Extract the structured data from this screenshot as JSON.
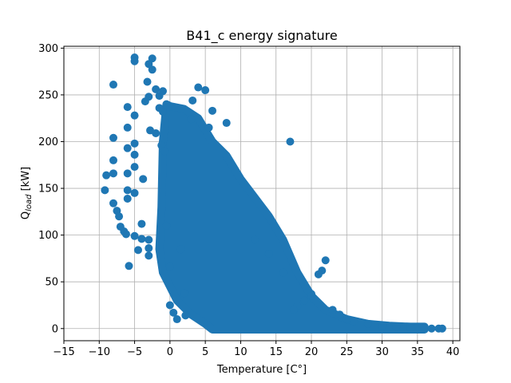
{
  "chart_data": {
    "type": "scatter",
    "title": "B41_c energy signature",
    "xlabel": "Temperature [C°]",
    "ylabel": "Q_load [kW]",
    "ylabel_main": "Q",
    "ylabel_sub": "load",
    "ylabel_unit": " [kW]",
    "xlim": [
      -15,
      41
    ],
    "ylim": [
      -13,
      302
    ],
    "xticks": [
      -15,
      -10,
      -5,
      0,
      5,
      10,
      15,
      20,
      25,
      30,
      35,
      40
    ],
    "xtick_labels": [
      "−15",
      "−10",
      "−5",
      "0",
      "5",
      "10",
      "15",
      "20",
      "25",
      "30",
      "35",
      "40"
    ],
    "yticks": [
      0,
      50,
      100,
      150,
      200,
      250,
      300
    ],
    "ytick_labels": [
      "0",
      "50",
      "100",
      "150",
      "200",
      "250",
      "300"
    ],
    "grid": true,
    "marker_color": "#1f77b4",
    "series": [
      {
        "x": [
          -9.2,
          -9.0,
          -8.0,
          -8.0,
          -8.0,
          -8.0,
          -8.0,
          -7.5,
          -7.2,
          -7.0,
          -6.5,
          -6.2,
          -6.0,
          -6.0,
          -6.0,
          -6.0,
          -6.0,
          -6.0,
          -5.8,
          -5.0,
          -5.0,
          -5.0,
          -5.0,
          -5.0,
          -5.0,
          -5.0,
          -5.0,
          -4.5,
          -4.0,
          -4.0,
          -3.8,
          -3.5,
          -3.2,
          -3.0,
          -3.0,
          -3.0,
          -3.0,
          -3.0,
          -2.8,
          -2.5,
          -2.5,
          -2.0,
          -2.0,
          -1.5,
          -1.5,
          -1.2,
          -1.0,
          -1.0,
          -0.8,
          -0.5,
          0.0,
          0.0,
          0.5,
          1.0,
          1.5,
          2.0,
          2.2,
          3.0,
          3.2,
          4.0,
          5.0,
          5.5,
          6.0,
          8.0,
          17.0,
          22.0,
          21.5,
          21.0,
          20.0,
          19.0,
          18.0,
          17.5,
          24.0,
          26.0,
          28.0,
          30.0,
          32.0,
          34.0,
          36.0,
          37.0,
          38.0,
          38.5,
          25.0,
          23.0,
          20.0,
          16.0,
          14.0,
          12.0
        ],
        "y": [
          148,
          164,
          261,
          204,
          180,
          166,
          134,
          126,
          120,
          109,
          104,
          101,
          237,
          215,
          193,
          166,
          148,
          139,
          67,
          290,
          286,
          228,
          198,
          186,
          173,
          145,
          99,
          84,
          96,
          112,
          160,
          243,
          264,
          95,
          78,
          86,
          283,
          248,
          212,
          289,
          277,
          256,
          209,
          236,
          249,
          196,
          232,
          254,
          190,
          110,
          66,
          25,
          17,
          10,
          85,
          38,
          14,
          224,
          244,
          258,
          255,
          215,
          233,
          220,
          200,
          73,
          62,
          58,
          37,
          30,
          24,
          20,
          15,
          8,
          5,
          3,
          2,
          1,
          1,
          0,
          0,
          0,
          10,
          20,
          35,
          60,
          80,
          95
        ]
      }
    ]
  }
}
